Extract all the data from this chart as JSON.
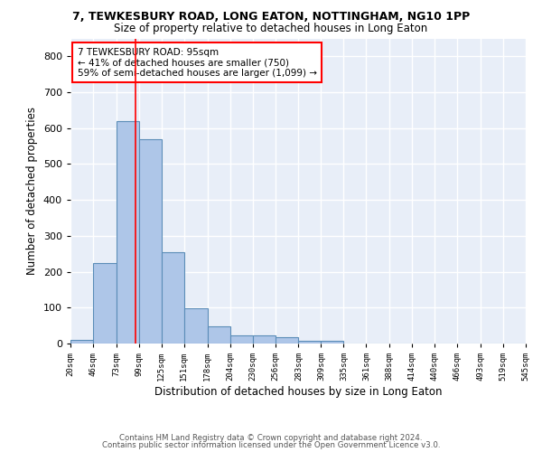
{
  "title1": "7, TEWKESBURY ROAD, LONG EATON, NOTTINGHAM, NG10 1PP",
  "title2": "Size of property relative to detached houses in Long Eaton",
  "xlabel": "Distribution of detached houses by size in Long Eaton",
  "ylabel": "Number of detached properties",
  "bar_heights": [
    10,
    225,
    620,
    570,
    255,
    97,
    47,
    22,
    22,
    17,
    8,
    8,
    0,
    0,
    0,
    0,
    0,
    0,
    0,
    0
  ],
  "bin_edges": [
    20,
    46,
    73,
    99,
    125,
    151,
    178,
    204,
    230,
    256,
    283,
    309,
    335,
    361,
    388,
    414,
    440,
    466,
    493,
    519,
    545
  ],
  "tick_labels": [
    "20sqm",
    "46sqm",
    "73sqm",
    "99sqm",
    "125sqm",
    "151sqm",
    "178sqm",
    "204sqm",
    "230sqm",
    "256sqm",
    "283sqm",
    "309sqm",
    "335sqm",
    "361sqm",
    "388sqm",
    "414sqm",
    "440sqm",
    "466sqm",
    "493sqm",
    "519sqm",
    "545sqm"
  ],
  "bar_color": "#aec6e8",
  "bar_edge_color": "#5b8db8",
  "red_line_x": 95,
  "annotation_text": "7 TEWKESBURY ROAD: 95sqm\n← 41% of detached houses are smaller (750)\n59% of semi-detached houses are larger (1,099) →",
  "ylim": [
    0,
    850
  ],
  "yticks": [
    0,
    100,
    200,
    300,
    400,
    500,
    600,
    700,
    800
  ],
  "footer1": "Contains HM Land Registry data © Crown copyright and database right 2024.",
  "footer2": "Contains public sector information licensed under the Open Government Licence v3.0.",
  "bg_color": "#e8eef8",
  "grid_color": "#ffffff"
}
